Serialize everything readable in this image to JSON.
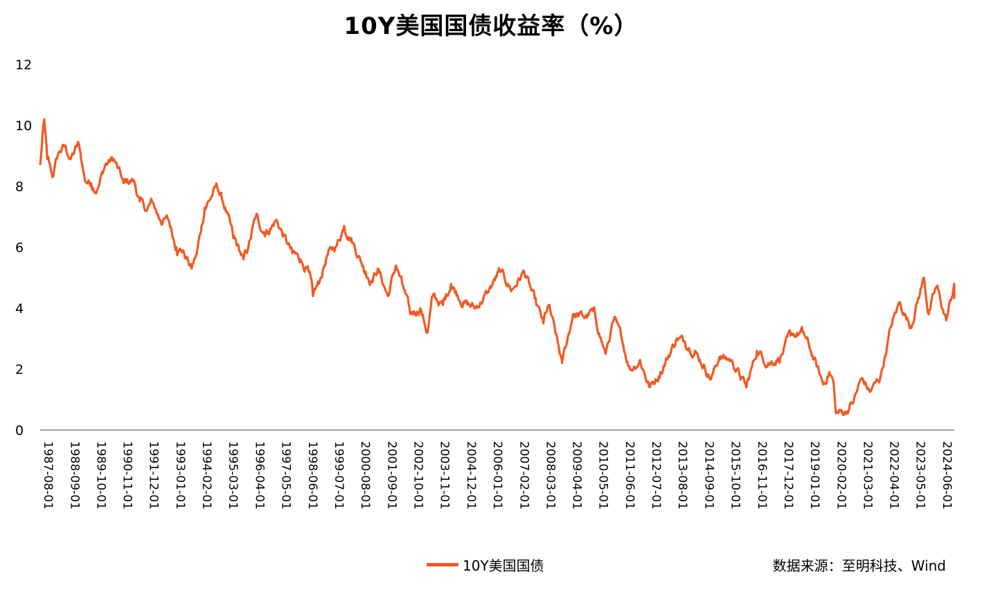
{
  "chart_data": {
    "type": "line",
    "title": "10Y美国国债收益率（%）",
    "ylim": [
      0,
      12
    ],
    "y_ticks": [
      0,
      2,
      4,
      6,
      8,
      10,
      12
    ],
    "x_tick_labels": [
      "1987-08-01",
      "1988-09-01",
      "1989-10-01",
      "1990-11-01",
      "1991-12-01",
      "1993-01-01",
      "1994-02-01",
      "1995-03-01",
      "1996-04-01",
      "1997-05-01",
      "1998-06-01",
      "1999-07-01",
      "2000-08-01",
      "2001-09-01",
      "2002-10-01",
      "2003-11-01",
      "2004-12-01",
      "2006-01-01",
      "2007-02-01",
      "2008-03-01",
      "2009-04-01",
      "2010-05-01",
      "2011-06-01",
      "2012-07-01",
      "2013-08-01",
      "2014-09-01",
      "2015-10-01",
      "2016-11-01",
      "2017-12-01",
      "2019-01-01",
      "2020-02-01",
      "2021-03-01",
      "2022-04-01",
      "2023-05-01",
      "2024-06-01"
    ],
    "x_range": [
      "1987-08-01",
      "2025-01-15"
    ],
    "color": "#F15A22",
    "grid": false,
    "legend_position": "bottom-center",
    "series": [
      {
        "name": "10Y美国国债",
        "points": [
          [
            "1987-08-01",
            8.7
          ],
          [
            "1987-10-01",
            10.2
          ],
          [
            "1987-11-15",
            8.9
          ],
          [
            "1988-02-01",
            8.3
          ],
          [
            "1988-05-01",
            9.1
          ],
          [
            "1988-08-01",
            9.3
          ],
          [
            "1988-11-01",
            8.9
          ],
          [
            "1989-03-01",
            9.4
          ],
          [
            "1989-06-01",
            8.2
          ],
          [
            "1989-09-01",
            8.1
          ],
          [
            "1989-12-01",
            7.9
          ],
          [
            "1990-04-01",
            8.7
          ],
          [
            "1990-08-01",
            8.9
          ],
          [
            "1990-10-01",
            8.6
          ],
          [
            "1991-01-01",
            8.1
          ],
          [
            "1991-06-01",
            8.2
          ],
          [
            "1991-09-01",
            7.5
          ],
          [
            "1991-12-15",
            7.2
          ],
          [
            "1992-03-01",
            7.5
          ],
          [
            "1992-07-01",
            6.9
          ],
          [
            "1992-11-01",
            6.9
          ],
          [
            "1993-03-01",
            6.0
          ],
          [
            "1993-06-01",
            5.9
          ],
          [
            "1993-10-15",
            5.3
          ],
          [
            "1994-01-01",
            5.8
          ],
          [
            "1994-05-01",
            7.3
          ],
          [
            "1994-11-01",
            8.0
          ],
          [
            "1995-03-01",
            7.3
          ],
          [
            "1995-07-01",
            6.3
          ],
          [
            "1995-12-01",
            5.6
          ],
          [
            "1996-02-01",
            5.9
          ],
          [
            "1996-06-01",
            7.0
          ],
          [
            "1996-10-01",
            6.5
          ],
          [
            "1997-01-01",
            6.6
          ],
          [
            "1997-04-01",
            6.9
          ],
          [
            "1997-09-01",
            6.2
          ],
          [
            "1997-12-01",
            5.8
          ],
          [
            "1998-04-01",
            5.6
          ],
          [
            "1998-08-01",
            5.2
          ],
          [
            "1998-10-05",
            4.4
          ],
          [
            "1999-01-01",
            4.8
          ],
          [
            "1999-05-01",
            5.7
          ],
          [
            "1999-10-01",
            6.1
          ],
          [
            "2000-01-15",
            6.7
          ],
          [
            "2000-05-01",
            6.3
          ],
          [
            "2000-12-01",
            5.2
          ],
          [
            "2001-03-01",
            4.9
          ],
          [
            "2001-06-01",
            5.3
          ],
          [
            "2001-11-01",
            4.4
          ],
          [
            "2002-03-01",
            5.4
          ],
          [
            "2002-06-01",
            4.8
          ],
          [
            "2002-10-01",
            3.8
          ],
          [
            "2003-03-01",
            4.0
          ],
          [
            "2003-06-15",
            3.2
          ],
          [
            "2003-09-01",
            4.4
          ],
          [
            "2004-02-01",
            4.1
          ],
          [
            "2004-06-01",
            4.8
          ],
          [
            "2004-12-01",
            4.2
          ],
          [
            "2005-06-01",
            4.0
          ],
          [
            "2005-12-01",
            4.5
          ],
          [
            "2006-06-01",
            5.2
          ],
          [
            "2006-12-01",
            4.6
          ],
          [
            "2007-06-01",
            5.2
          ],
          [
            "2007-12-01",
            4.1
          ],
          [
            "2008-03-15",
            3.5
          ],
          [
            "2008-06-01",
            4.1
          ],
          [
            "2008-12-20",
            2.2
          ],
          [
            "2009-06-01",
            3.8
          ],
          [
            "2009-12-01",
            3.7
          ],
          [
            "2010-04-01",
            3.9
          ],
          [
            "2010-10-01",
            2.5
          ],
          [
            "2011-02-01",
            3.6
          ],
          [
            "2011-06-01",
            3.0
          ],
          [
            "2011-10-01",
            2.0
          ],
          [
            "2012-03-01",
            2.3
          ],
          [
            "2012-07-25",
            1.4
          ],
          [
            "2013-01-01",
            1.9
          ],
          [
            "2013-09-01",
            3.0
          ],
          [
            "2014-01-01",
            2.9
          ],
          [
            "2014-06-01",
            2.6
          ],
          [
            "2015-01-31",
            1.7
          ],
          [
            "2015-06-01",
            2.4
          ],
          [
            "2015-12-01",
            2.3
          ],
          [
            "2016-07-08",
            1.4
          ],
          [
            "2016-12-15",
            2.6
          ],
          [
            "2017-06-01",
            2.2
          ],
          [
            "2017-12-01",
            2.4
          ],
          [
            "2018-05-01",
            3.1
          ],
          [
            "2018-11-01",
            3.2
          ],
          [
            "2019-03-01",
            2.6
          ],
          [
            "2019-09-01",
            1.5
          ],
          [
            "2019-12-01",
            1.9
          ],
          [
            "2020-02-01",
            1.6
          ],
          [
            "2020-03-10",
            0.55
          ],
          [
            "2020-08-01",
            0.6
          ],
          [
            "2020-12-01",
            0.95
          ],
          [
            "2021-03-31",
            1.7
          ],
          [
            "2021-08-01",
            1.25
          ],
          [
            "2022-01-01",
            1.7
          ],
          [
            "2022-06-15",
            3.4
          ],
          [
            "2022-10-20",
            4.2
          ],
          [
            "2023-04-01",
            3.4
          ],
          [
            "2023-10-20",
            5.0
          ],
          [
            "2023-12-28",
            3.8
          ],
          [
            "2024-04-25",
            4.7
          ],
          [
            "2024-09-16",
            3.6
          ],
          [
            "2024-12-31",
            4.6
          ],
          [
            "2025-01-12",
            4.8
          ],
          [
            "2025-01-15",
            4.3
          ]
        ]
      }
    ]
  },
  "legend": {
    "label": "10Y美国国债"
  },
  "source": "数据来源：至明科技、Wind"
}
